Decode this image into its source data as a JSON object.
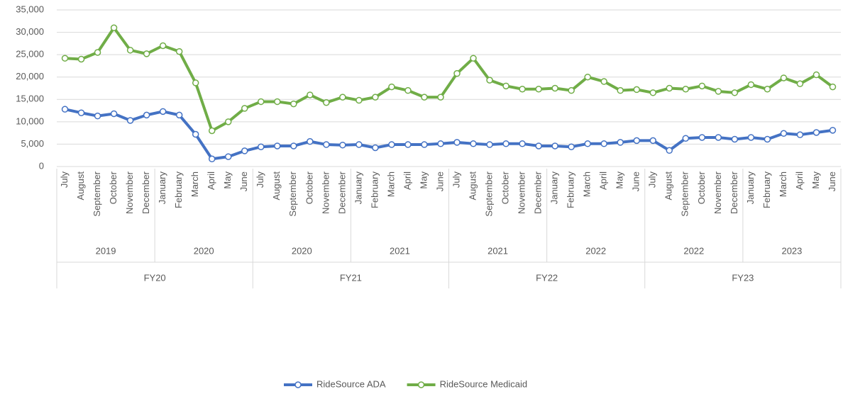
{
  "chart_data": {
    "type": "line",
    "categories": [
      "July",
      "August",
      "September",
      "October",
      "November",
      "December",
      "January",
      "February",
      "March",
      "April",
      "May",
      "June",
      "July",
      "August",
      "September",
      "October",
      "November",
      "December",
      "January",
      "February",
      "March",
      "April",
      "May",
      "June",
      "July",
      "August",
      "September",
      "October",
      "November",
      "December",
      "January",
      "February",
      "March",
      "April",
      "May",
      "June",
      "July",
      "August",
      "September",
      "October",
      "November",
      "December",
      "January",
      "February",
      "March",
      "April",
      "May",
      "June"
    ],
    "year_labels": [
      "2019",
      "2020",
      "2020",
      "2021",
      "2021",
      "2022",
      "2022",
      "2023"
    ],
    "fy_labels": [
      "FY20",
      "FY21",
      "FY22",
      "FY23"
    ],
    "series": [
      {
        "name": "RideSource ADA",
        "color": "#4472c4",
        "values": [
          12800,
          12000,
          11300,
          11800,
          10300,
          11500,
          12300,
          11500,
          7200,
          1700,
          2200,
          3500,
          4400,
          4600,
          4600,
          5600,
          4900,
          4800,
          4900,
          4200,
          4900,
          4900,
          4900,
          5100,
          5400,
          5100,
          4900,
          5100,
          5100,
          4600,
          4600,
          4400,
          5100,
          5100,
          5400,
          5800,
          5800,
          3600,
          6300,
          6500,
          6500,
          6100,
          6500,
          6100,
          7400,
          7100,
          7600,
          8100
        ]
      },
      {
        "name": "RideSource Medicaid",
        "color": "#70ad47",
        "values": [
          24200,
          24000,
          25500,
          31000,
          26000,
          25200,
          27000,
          25700,
          18700,
          8000,
          10000,
          13000,
          14500,
          14500,
          14000,
          16000,
          14300,
          15500,
          14800,
          15500,
          17800,
          17000,
          15500,
          15500,
          20800,
          24200,
          19300,
          18000,
          17300,
          17300,
          17500,
          17000,
          20000,
          19000,
          17000,
          17200,
          16500,
          17500,
          17300,
          18000,
          16800,
          16500,
          18300,
          17300,
          19800,
          18500,
          20500,
          17800
        ]
      }
    ],
    "ylim": [
      0,
      35000
    ],
    "yticks": [
      0,
      {
        "value": 5000,
        "label": "5,000"
      },
      {
        "value": 10000,
        "label": "10,000"
      },
      {
        "value": 15000,
        "label": "15,000"
      },
      {
        "value": 20000,
        "label": "20,000"
      },
      {
        "value": 25000,
        "label": "25,000"
      },
      {
        "value": 30000,
        "label": "30,000"
      },
      {
        "value": 35000,
        "label": "35,000"
      }
    ],
    "grid": true,
    "legend": "bottom"
  }
}
